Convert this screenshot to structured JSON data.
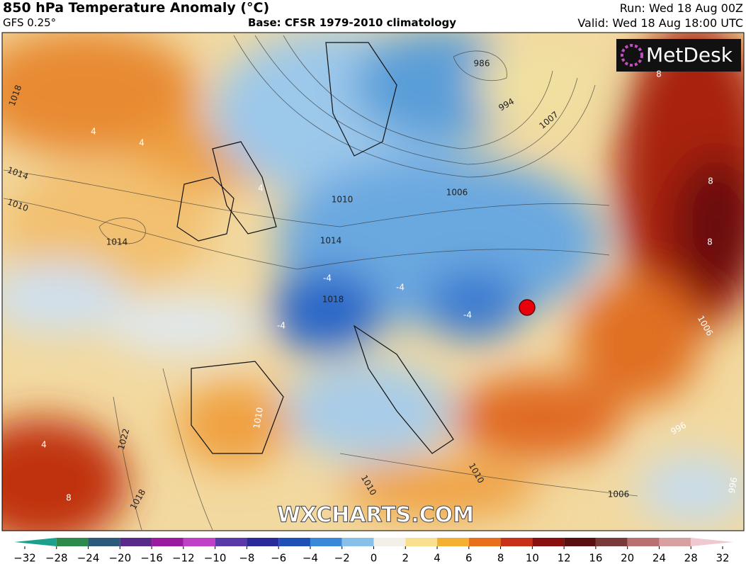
{
  "header": {
    "title": "850 hPa Temperature Anomaly (°C)",
    "model": "GFS 0.25°",
    "base": "Base: CFSR 1979-2010 climatology",
    "run": "Run: Wed 18 Aug 00Z",
    "valid": "Valid: Wed 18 Aug 18:00 UTC"
  },
  "logo": "MetDesk",
  "watermark": "WXCHARTS.COM",
  "map": {
    "labels": [
      "1018",
      "1014",
      "1010",
      "1014",
      "4",
      "4",
      "4",
      "986",
      "994",
      "1007",
      "1006",
      "1010",
      "1014",
      "1018",
      "-4",
      "-4",
      "-4",
      "-4",
      "8",
      "8",
      "8",
      "1006",
      "1010",
      "1022",
      "1018",
      "8",
      "4",
      "1010",
      "1006",
      "1010",
      "996",
      "996"
    ]
  },
  "colorbar": {
    "ticks": [
      -32,
      -28,
      -24,
      -20,
      -16,
      -12,
      -10,
      -8,
      -6,
      -4,
      -2,
      0,
      2,
      4,
      6,
      8,
      10,
      12,
      16,
      20,
      24,
      28,
      32
    ],
    "colors": [
      "#1aa08c",
      "#2e8a4a",
      "#2c5a7a",
      "#5a2a8a",
      "#9a1aa0",
      "#c040c8",
      "#5a3aa8",
      "#2a2a9a",
      "#1e50b8",
      "#3a88d8",
      "#88c0ea",
      "#f2f0e8",
      "#f8e090",
      "#f4b030",
      "#e8701a",
      "#c8301a",
      "#8a1010",
      "#5a1010",
      "#7a3a3a",
      "#b87070",
      "#d8a0a0",
      "#f0c8d0"
    ]
  }
}
